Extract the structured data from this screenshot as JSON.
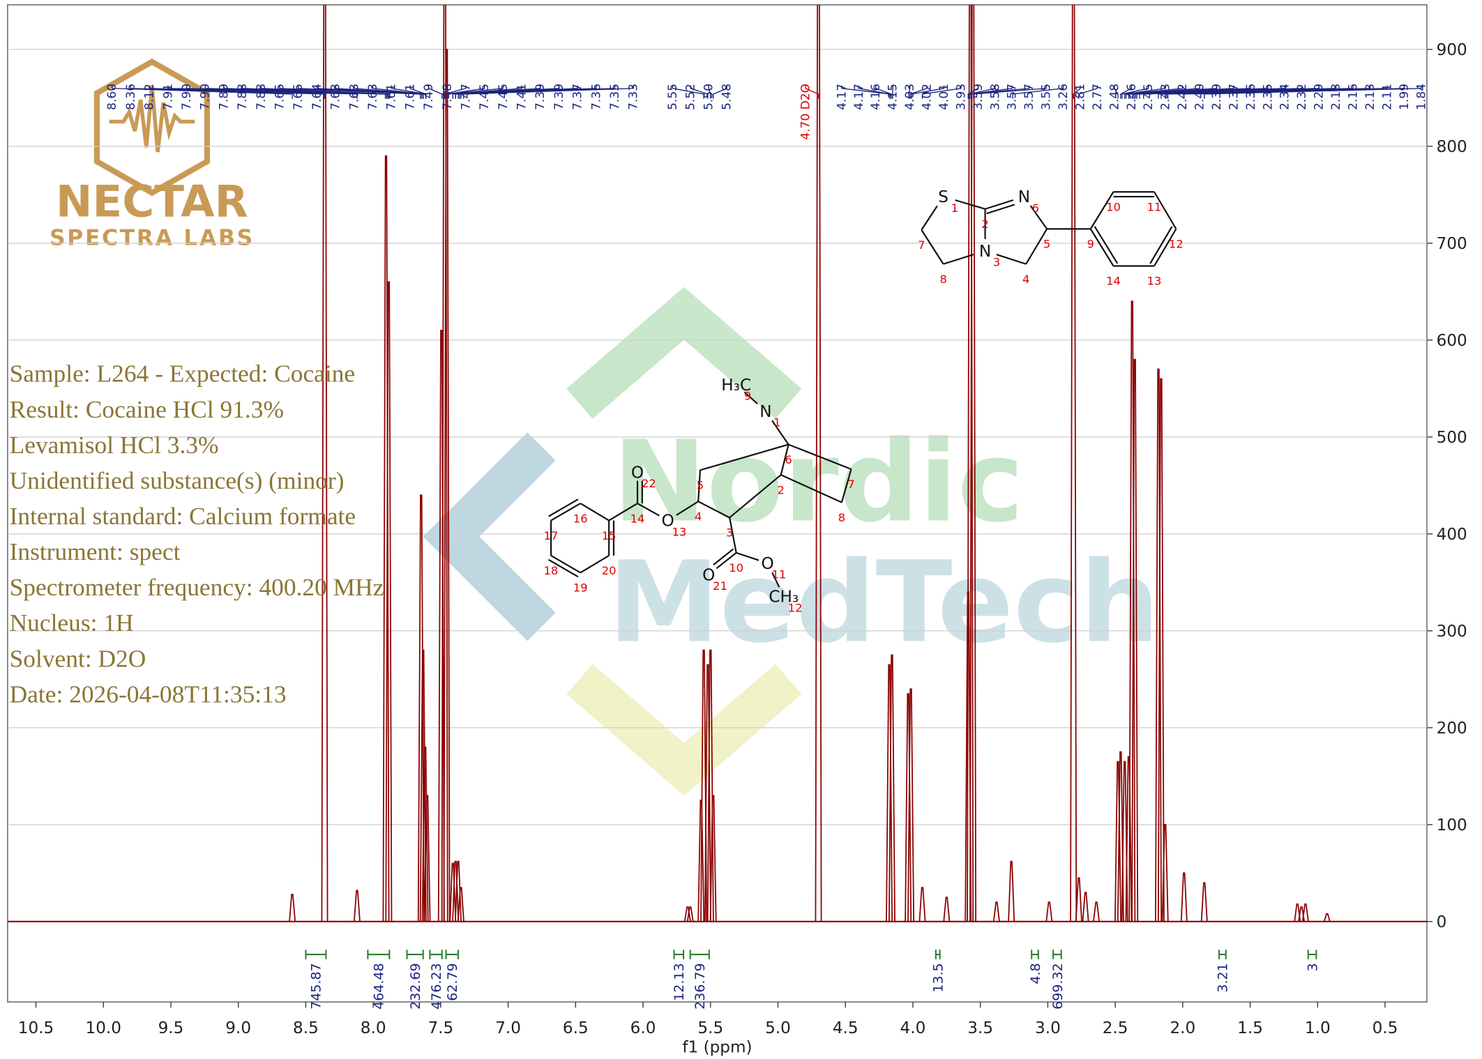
{
  "chart_data": {
    "type": "spectrum",
    "x_label": "f1 (ppm)",
    "color": "#8b0000",
    "xlim": [
      10.71,
      0.19
    ],
    "ylim": [
      -83,
      946
    ],
    "xticks": [
      {
        "value": 10.5,
        "label": "10.5"
      },
      {
        "value": 10,
        "label": "10.0"
      },
      9.5,
      {
        "value": 9,
        "label": "9.0"
      },
      8.5,
      {
        "value": 8,
        "label": "8.0"
      },
      7.5,
      {
        "value": 7,
        "label": "7.0"
      },
      6.5,
      {
        "value": 6,
        "label": "6.0"
      },
      5.5,
      {
        "value": 5,
        "label": "5.0"
      },
      4.5,
      {
        "value": 4,
        "label": "4.0"
      },
      3.5,
      {
        "value": 3,
        "label": "3.0"
      },
      2.5,
      {
        "value": 2,
        "label": "2.0"
      },
      1.5,
      {
        "value": 1,
        "label": "1.0"
      },
      0.5
    ],
    "yticks": [
      0,
      100,
      200,
      300,
      400,
      500,
      600,
      700,
      800,
      900
    ],
    "x": [
      8.6,
      8.36,
      8.12,
      7.905,
      7.885,
      7.645,
      7.63,
      7.615,
      7.6,
      7.495,
      7.47,
      7.455,
      7.41,
      7.39,
      7.37,
      7.35,
      5.67,
      5.65,
      5.57,
      5.55,
      5.52,
      5.5,
      5.48,
      4.7,
      4.175,
      4.155,
      4.035,
      4.015,
      3.93,
      3.75,
      3.59,
      3.575,
      3.555,
      3.38,
      3.27,
      2.99,
      2.81,
      2.77,
      2.72,
      2.64,
      2.48,
      2.46,
      2.43,
      2.4,
      2.375,
      2.355,
      2.18,
      2.16,
      2.13,
      1.99,
      1.84,
      1.15,
      1.12,
      1.09,
      0.93
    ],
    "values": [
      28,
      1100,
      32,
      790,
      660,
      440,
      280,
      180,
      130,
      610,
      1100,
      900,
      60,
      62,
      62,
      35,
      15,
      15,
      125,
      280,
      265,
      280,
      130,
      1150,
      265,
      275,
      235,
      240,
      35,
      25,
      340,
      1100,
      1100,
      20,
      62,
      20,
      1150,
      45,
      30,
      20,
      165,
      175,
      165,
      170,
      640,
      580,
      570,
      560,
      100,
      50,
      40,
      18,
      15,
      18,
      8
    ],
    "peak_labels": [
      "8.60",
      "8.36",
      "8.12",
      "7.91",
      "7.90",
      "7.90",
      "7.89",
      "7.88",
      "7.88",
      "7.65",
      "7.65",
      "7.64",
      "7.63",
      "7.63",
      "7.63",
      "7.61",
      "7.61",
      "7.49",
      "7.48",
      "7.47",
      "7.45",
      "7.45",
      "7.41",
      "7.39",
      "7.39",
      "7.37",
      "7.36",
      "7.35",
      "7.33",
      "5.55",
      "5.52",
      "5.50",
      "5.48",
      "4.70 D2O",
      "4.17",
      "4.17",
      "4.16",
      "4.15",
      "4.03",
      "4.02",
      "4.01",
      "3.93",
      "3.59",
      "3.58",
      "3.57",
      "3.57",
      "3.55",
      "3.26",
      "2.81",
      "2.77",
      "2.48",
      "2.46",
      "2.45",
      "2.43",
      "2.42",
      "2.40",
      "2.39",
      "2.37",
      "2.36",
      "2.35",
      "2.34",
      "2.32",
      "2.29",
      "2.18",
      "2.16",
      "2.13",
      "2.11",
      "1.99",
      "1.84"
    ],
    "integrals": {
      "color": "#2e7d32",
      "ranges": [
        [
          8.5,
          8.35
        ],
        [
          8.04,
          7.88
        ],
        [
          7.75,
          7.63
        ],
        [
          7.58,
          7.49
        ],
        [
          7.46,
          7.37
        ],
        [
          5.77,
          5.7
        ],
        [
          5.65,
          5.51
        ],
        [
          3.83,
          3.8
        ],
        [
          3.12,
          3.07
        ],
        [
          2.96,
          2.9
        ],
        [
          1.73,
          1.68
        ],
        [
          1.07,
          1.01
        ]
      ],
      "values": [
        745.87,
        464.48,
        232.69,
        476.23,
        62.79,
        12.13,
        236.79,
        13.5,
        4.8,
        699.32,
        3.21,
        3.0
      ]
    }
  },
  "info": [
    "Sample: L264 - Expected: Cocaine",
    "Result: Cocaine HCl 91.3%",
    "Levamisol HCl 3.3%",
    "Unidentified substance(s) (minor)",
    "Internal standard: Calcium formate",
    "Instrument: spect",
    "Spectrometer frequency: 400.20 MHz",
    "Nucleus: 1H",
    "Solvent: D2O",
    "Date: 2026-04-08T11:35:13"
  ],
  "logo": {
    "name": "NECTAR",
    "tagline": "SPECTRA LABS"
  },
  "watermark": [
    "Nordic",
    "MedTech"
  ],
  "structures": [
    {
      "atoms": [
        {
          "symbol": "S",
          "number": 1
        },
        {
          "number": 2
        },
        {
          "symbol": "N",
          "number": 3
        },
        {
          "number": 4
        },
        {
          "number": 5
        },
        {
          "symbol": "N",
          "number": 6
        },
        {
          "number": 7
        },
        {
          "number": 8
        },
        {
          "number": 9
        },
        {
          "number": 10
        },
        {
          "number": 11
        },
        {
          "number": 12
        },
        {
          "number": 13
        },
        {
          "number": 14
        }
      ]
    },
    {
      "atoms": [
        {
          "symbol": "N",
          "number": 1
        },
        {
          "number": 2
        },
        {
          "number": 3
        },
        {
          "number": 4
        },
        {
          "number": 5
        },
        {
          "number": 6
        },
        {
          "number": 7
        },
        {
          "number": 8
        },
        {
          "symbol": "H₃C",
          "number": 9
        },
        {
          "number": 10
        },
        {
          "symbol": "O",
          "number": 11
        },
        {
          "symbol": "CH₃",
          "number": 12
        },
        {
          "symbol": "O",
          "number": 13
        },
        {
          "number": 14
        },
        {
          "number": 15
        },
        {
          "number": 16
        },
        {
          "number": 17
        },
        {
          "number": 18
        },
        {
          "number": 19
        },
        {
          "number": 20
        },
        {
          "symbol": "O",
          "number": 21
        },
        {
          "symbol": "O",
          "number": 22
        }
      ]
    }
  ]
}
